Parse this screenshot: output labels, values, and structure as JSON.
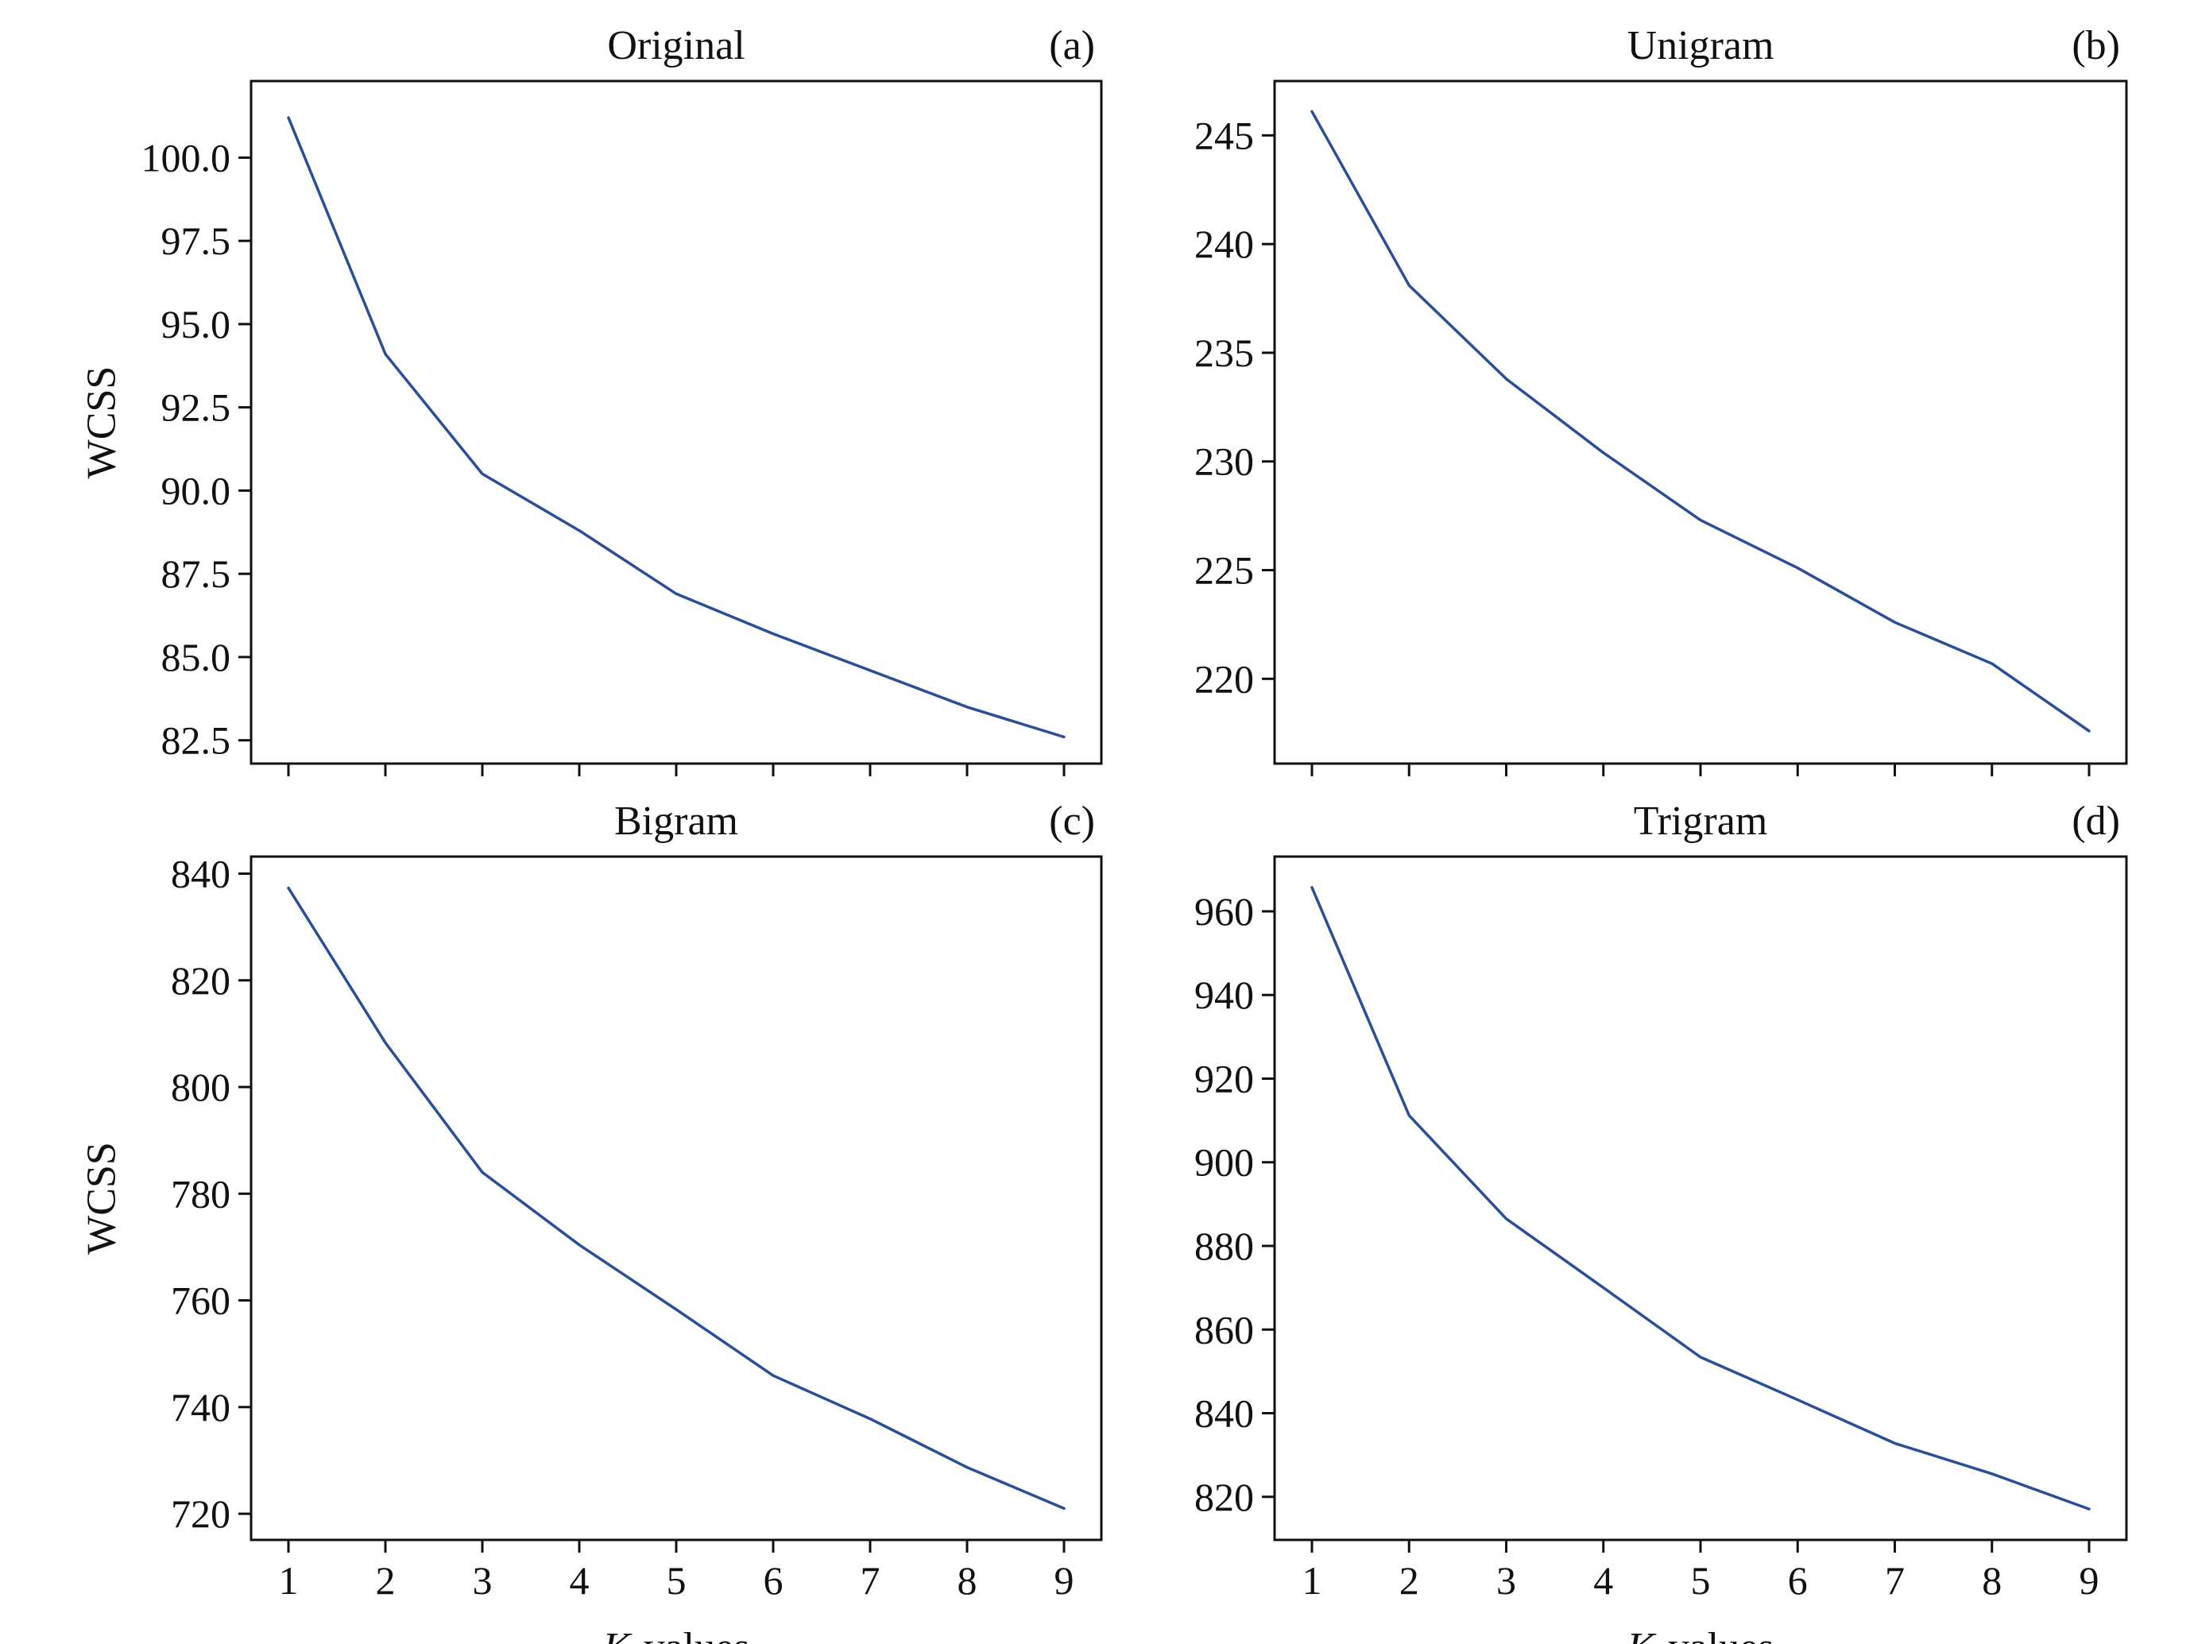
{
  "figure": {
    "line_color": "#2a4f96",
    "xlabel_prefix": "K",
    "xlabel_suffix": "-values"
  },
  "chart_data": [
    {
      "type": "line",
      "title": "Original",
      "panel_label": "(a)",
      "ylabel": "WCSS",
      "xlabel": "",
      "x": [
        1,
        2,
        3,
        4,
        5,
        6,
        7,
        8,
        9
      ],
      "xticks": [],
      "series": [
        {
          "values": [
            101.2,
            94.1,
            90.5,
            88.8,
            86.9,
            85.7,
            84.6,
            83.5,
            82.6
          ]
        }
      ],
      "ylim": [
        81.8,
        102.3
      ],
      "yticks": [
        "82.5",
        "85.0",
        "87.5",
        "90.0",
        "92.5",
        "95.0",
        "97.5",
        "100.0"
      ],
      "grid": false
    },
    {
      "type": "line",
      "title": "Unigram",
      "panel_label": "(b)",
      "ylabel": "",
      "xlabel": "",
      "x": [
        1,
        2,
        3,
        4,
        5,
        6,
        7,
        8,
        9
      ],
      "xticks": [],
      "series": [
        {
          "values": [
            246.1,
            238.1,
            233.8,
            230.4,
            227.3,
            225.1,
            222.6,
            220.7,
            217.6
          ]
        }
      ],
      "ylim": [
        216.1,
        247.5
      ],
      "yticks": [
        "220",
        "225",
        "230",
        "235",
        "240",
        "245"
      ],
      "grid": false
    },
    {
      "type": "line",
      "title": "Bigram",
      "panel_label": "(c)",
      "ylabel": "WCSS",
      "xlabel": "K-values",
      "x": [
        1,
        2,
        3,
        4,
        5,
        6,
        7,
        8,
        9
      ],
      "xticks": [
        "1",
        "2",
        "3",
        "4",
        "5",
        "6",
        "7",
        "8",
        "9"
      ],
      "series": [
        {
          "values": [
            837.3,
            808.3,
            784.0,
            770.4,
            758.3,
            745.9,
            737.8,
            728.7,
            721.0
          ]
        }
      ],
      "ylim": [
        715.1,
        843.2
      ],
      "yticks": [
        "720",
        "740",
        "760",
        "780",
        "800",
        "820",
        "840"
      ],
      "grid": false
    },
    {
      "type": "line",
      "title": "Trigram",
      "panel_label": "(d)",
      "ylabel": "",
      "xlabel": "K-values",
      "x": [
        1,
        2,
        3,
        4,
        5,
        6,
        7,
        8,
        9
      ],
      "xticks": [
        "1",
        "2",
        "3",
        "4",
        "5",
        "6",
        "7",
        "8",
        "9"
      ],
      "series": [
        {
          "values": [
            965.7,
            911.2,
            886.5,
            870.0,
            853.4,
            843.2,
            832.8,
            825.5,
            817.1
          ]
        }
      ],
      "ylim": [
        809.7,
        973.1
      ],
      "yticks": [
        "820",
        "840",
        "860",
        "880",
        "900",
        "920",
        "940",
        "960"
      ],
      "grid": false
    }
  ]
}
